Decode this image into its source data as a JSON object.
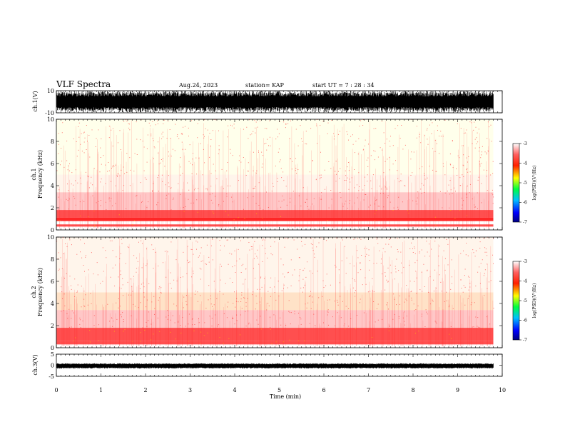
{
  "header": {
    "title": "VLF Spectra",
    "date": "Aug.24, 2023",
    "station": "station= KAP",
    "start_ut": "start UT = 7 : 28 : 34"
  },
  "chart_data": [
    {
      "type": "line",
      "panel": "waveform-ch1",
      "ylabel": "ch.1(V)",
      "ylim": [
        -10,
        10
      ],
      "yticks": [
        "10",
        "-10"
      ],
      "xlim": [
        0,
        10
      ],
      "description_values": {
        "data_end_min": 9.8
      },
      "colors": {
        "trace": "#000000"
      }
    },
    {
      "type": "heatmap",
      "panel": "spectrogram-ch1",
      "ylabel": "ch.1",
      "ylabel2": "Frequency (kHz)",
      "ylim": [
        0,
        10
      ],
      "yticks": [
        "0",
        "2",
        "4",
        "6",
        "8",
        "10"
      ],
      "xlim": [
        0,
        10
      ],
      "data_end_min": 9.8,
      "colorbar": {
        "label": "log(PSD)(V²/Hz)",
        "range": [
          -7,
          -3
        ],
        "ticks": [
          "-3",
          "-4",
          "-5",
          "-6",
          "-7"
        ]
      },
      "bands_khz": [
        {
          "from": 0.3,
          "to": 0.5,
          "level": -3.6
        },
        {
          "from": 0.8,
          "to": 1.1,
          "level": -3.7
        },
        {
          "from": 1.1,
          "to": 1.8,
          "level": -3.5
        },
        {
          "from": 1.8,
          "to": 3.4,
          "level": -4.0
        },
        {
          "from": 3.4,
          "to": 5.0,
          "level": -4.4
        },
        {
          "from": 5.0,
          "to": 10.0,
          "level": -4.7
        }
      ]
    },
    {
      "type": "heatmap",
      "panel": "spectrogram-ch2",
      "ylabel": "ch.2",
      "ylabel2": "Frequency (kHz)",
      "ylim": [
        0,
        10
      ],
      "yticks": [
        "0",
        "2",
        "4",
        "6",
        "8",
        "10"
      ],
      "xlim": [
        0,
        10
      ],
      "data_end_min": 9.8,
      "colorbar": {
        "label": "log(PSD)(V²/Hz)",
        "range": [
          -7,
          -3
        ],
        "ticks": [
          "-3",
          "-4",
          "-5",
          "-6",
          "-7"
        ]
      },
      "bands_khz": [
        {
          "from": 0.3,
          "to": 0.6,
          "level": -3.2
        },
        {
          "from": 0.6,
          "to": 1.0,
          "level": -3.6
        },
        {
          "from": 1.0,
          "to": 1.8,
          "level": -3.2
        },
        {
          "from": 1.8,
          "to": 3.4,
          "level": -3.9
        },
        {
          "from": 3.4,
          "to": 5.0,
          "level": -4.3
        },
        {
          "from": 5.0,
          "to": 10.0,
          "level": -4.5
        }
      ]
    },
    {
      "type": "line",
      "panel": "waveform-ch3",
      "ylabel": "ch.3(V)",
      "ylim": [
        -5,
        5
      ],
      "yticks": [
        "5",
        "0",
        "-5"
      ],
      "xlim": [
        0,
        10
      ],
      "xlabel": "Time (min)",
      "xticks": [
        "0",
        "1",
        "2",
        "3",
        "4",
        "5",
        "6",
        "7",
        "8",
        "9",
        "10"
      ],
      "data_end_min": 9.8,
      "trace_band_v": [
        -1,
        0.4
      ],
      "colors": {
        "trace": "#000000"
      }
    }
  ]
}
